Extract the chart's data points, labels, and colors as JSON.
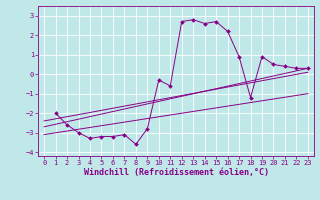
{
  "xlabel": "Windchill (Refroidissement éolien,°C)",
  "background_color": "#c0e8e8",
  "line_color": "#880088",
  "xlim": [
    -0.5,
    23.5
  ],
  "ylim": [
    -4.2,
    3.5
  ],
  "xticks": [
    0,
    1,
    2,
    3,
    4,
    5,
    6,
    7,
    8,
    9,
    10,
    11,
    12,
    13,
    14,
    15,
    16,
    17,
    18,
    19,
    20,
    21,
    22,
    23
  ],
  "yticks": [
    -4,
    -3,
    -2,
    -1,
    0,
    1,
    2,
    3
  ],
  "main_x": [
    1,
    2,
    3,
    4,
    5,
    6,
    7,
    8,
    9,
    10,
    11,
    12,
    13,
    14,
    15,
    16,
    17,
    18,
    19,
    20,
    21,
    22,
    23
  ],
  "main_y": [
    -2,
    -2.6,
    -3,
    -3.3,
    -3.2,
    -3.2,
    -3.1,
    -3.6,
    -2.8,
    -0.3,
    -0.6,
    2.7,
    2.8,
    2.6,
    2.7,
    2.2,
    0.9,
    -1.2,
    0.9,
    0.5,
    0.4,
    0.3,
    0.3
  ],
  "line1_x": [
    0,
    23
  ],
  "line1_y": [
    -2.7,
    0.3
  ],
  "line2_x": [
    0,
    23
  ],
  "line2_y": [
    -2.4,
    0.1
  ],
  "line3_x": [
    0,
    23
  ],
  "line3_y": [
    -3.1,
    -1.0
  ],
  "grid_color": "#ffffff",
  "tick_color": "#880088",
  "xlabel_fontsize": 6,
  "tick_fontsize": 5
}
